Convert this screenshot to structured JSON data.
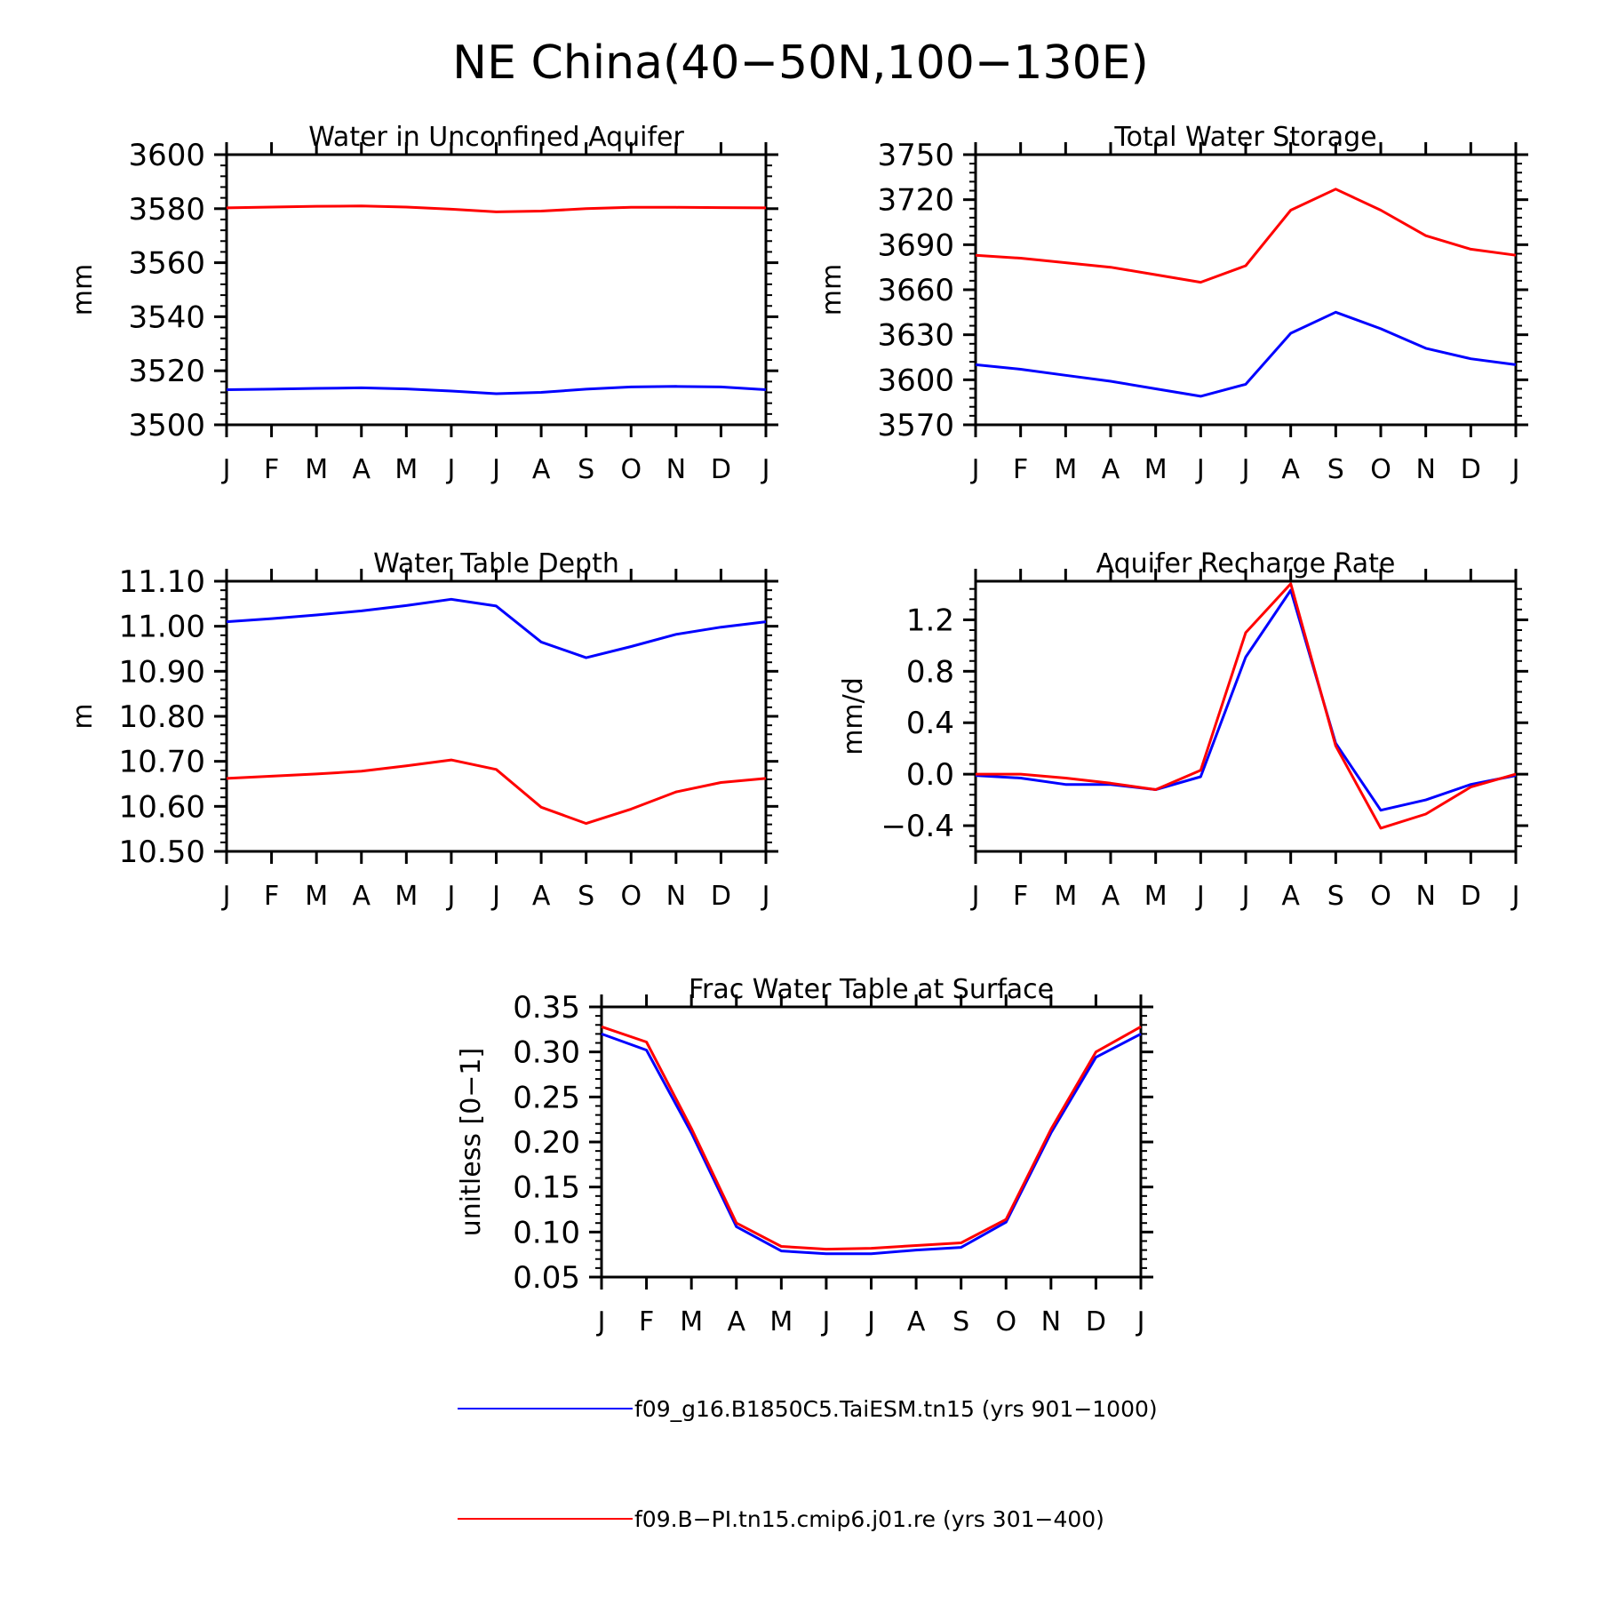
{
  "figure": {
    "title": "NE China(40−50N,100−130E)"
  },
  "colors": {
    "series_blue": "#0000ff",
    "series_red": "#ff0000"
  },
  "legend": {
    "entries": [
      {
        "label": "f09_g16.B1850C5.TaiESM.tn15 (yrs 901−1000)",
        "color": "#0000ff"
      },
      {
        "label": "f09.B−PI.tn15.cmip6.j01.re (yrs 301−400)",
        "color": "#ff0000"
      }
    ]
  },
  "chart_data": [
    {
      "type": "line",
      "title": "Water in Unconfined Aquifer",
      "ylabel": "mm",
      "x": [
        "J",
        "F",
        "M",
        "A",
        "M",
        "J",
        "J",
        "A",
        "S",
        "O",
        "N",
        "D",
        "J"
      ],
      "ylim": [
        3500,
        3600
      ],
      "yticks": [
        "3500",
        "3520",
        "3540",
        "3560",
        "3580",
        "3600"
      ],
      "series": [
        {
          "color": "#0000ff",
          "values": [
            3513,
            3513.2,
            3513.5,
            3513.7,
            3513.3,
            3512.5,
            3511.5,
            3512,
            3513.2,
            3514,
            3514.2,
            3514,
            3513
          ]
        },
        {
          "color": "#ff0000",
          "values": [
            3580.3,
            3580.6,
            3580.9,
            3581,
            3580.6,
            3579.8,
            3578.8,
            3579.1,
            3580,
            3580.5,
            3580.5,
            3580.4,
            3580.3
          ]
        }
      ]
    },
    {
      "type": "line",
      "title": "Total Water Storage",
      "ylabel": "mm",
      "x": [
        "J",
        "F",
        "M",
        "A",
        "M",
        "J",
        "J",
        "A",
        "S",
        "O",
        "N",
        "D",
        "J"
      ],
      "ylim": [
        3570,
        3750
      ],
      "yticks": [
        "3570",
        "3600",
        "3630",
        "3660",
        "3690",
        "3720",
        "3750"
      ],
      "series": [
        {
          "color": "#0000ff",
          "values": [
            3610,
            3607,
            3603,
            3599,
            3594,
            3589,
            3597,
            3631,
            3645,
            3634,
            3621,
            3614,
            3610
          ]
        },
        {
          "color": "#ff0000",
          "values": [
            3683,
            3681,
            3678,
            3675,
            3670,
            3665,
            3676,
            3713,
            3727,
            3713,
            3696,
            3687,
            3683
          ]
        }
      ]
    },
    {
      "type": "line",
      "title": "Water Table Depth",
      "ylabel": "m",
      "x": [
        "J",
        "F",
        "M",
        "A",
        "M",
        "J",
        "J",
        "A",
        "S",
        "O",
        "N",
        "D",
        "J"
      ],
      "ylim": [
        10.5,
        11.1
      ],
      "yticks": [
        "10.50",
        "10.60",
        "10.70",
        "10.80",
        "10.90",
        "11.00",
        "11.10"
      ],
      "series": [
        {
          "color": "#0000ff",
          "values": [
            11.01,
            11.017,
            11.025,
            11.034,
            11.046,
            11.06,
            11.045,
            10.965,
            10.93,
            10.955,
            10.982,
            10.998,
            11.01
          ]
        },
        {
          "color": "#ff0000",
          "values": [
            10.662,
            10.667,
            10.672,
            10.678,
            10.69,
            10.703,
            10.682,
            10.598,
            10.562,
            10.594,
            10.632,
            10.653,
            10.662
          ]
        }
      ]
    },
    {
      "type": "line",
      "title": "Aquifer Recharge Rate",
      "ylabel": "mm/d",
      "x": [
        "J",
        "F",
        "M",
        "A",
        "M",
        "J",
        "J",
        "A",
        "S",
        "O",
        "N",
        "D",
        "J"
      ],
      "ylim": [
        -0.6,
        1.5
      ],
      "yticks": [
        "−0.4",
        "0.0",
        "0.4",
        "0.8",
        "1.2"
      ],
      "ytick_values": [
        -0.4,
        0,
        0.4,
        0.8,
        1.2
      ],
      "series": [
        {
          "color": "#0000ff",
          "values": [
            -0.01,
            -0.03,
            -0.08,
            -0.08,
            -0.12,
            -0.02,
            0.91,
            1.43,
            0.24,
            -0.28,
            -0.2,
            -0.08,
            -0.01
          ]
        },
        {
          "color": "#ff0000",
          "values": [
            0,
            0,
            -0.03,
            -0.07,
            -0.12,
            0.03,
            1.1,
            1.48,
            0.22,
            -0.42,
            -0.31,
            -0.1,
            0
          ]
        }
      ]
    },
    {
      "type": "line",
      "title": "Frac Water Table at Surface",
      "ylabel": "unitless [0−1]",
      "x": [
        "J",
        "F",
        "M",
        "A",
        "M",
        "J",
        "J",
        "A",
        "S",
        "O",
        "N",
        "D",
        "J"
      ],
      "ylim": [
        0.05,
        0.35
      ],
      "yticks": [
        "0.05",
        "0.10",
        "0.15",
        "0.20",
        "0.25",
        "0.30",
        "0.35"
      ],
      "series": [
        {
          "color": "#0000ff",
          "values": [
            0.32,
            0.302,
            0.21,
            0.106,
            0.079,
            0.076,
            0.076,
            0.08,
            0.083,
            0.111,
            0.21,
            0.294,
            0.32
          ]
        },
        {
          "color": "#ff0000",
          "values": [
            0.328,
            0.311,
            0.215,
            0.11,
            0.084,
            0.081,
            0.082,
            0.085,
            0.088,
            0.114,
            0.214,
            0.3,
            0.328
          ]
        }
      ]
    }
  ]
}
